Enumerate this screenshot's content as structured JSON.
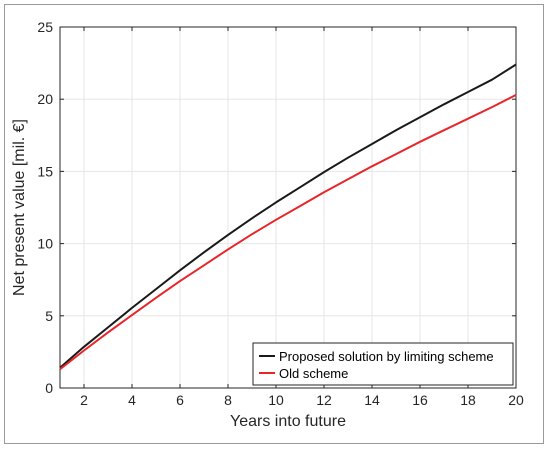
{
  "chart_data": {
    "type": "line",
    "title": "",
    "xlabel": "Years into future",
    "ylabel": "Net present value [mil. €]",
    "xlim": [
      1,
      20
    ],
    "ylim": [
      0,
      25
    ],
    "xticks": [
      2,
      4,
      6,
      8,
      10,
      12,
      14,
      16,
      18,
      20
    ],
    "yticks": [
      0,
      5,
      10,
      15,
      20,
      25
    ],
    "grid": true,
    "legend_position": "bottom-right",
    "series": [
      {
        "name": "Proposed solution by limiting scheme",
        "color": "#1a1a1a",
        "x": [
          1,
          2,
          3,
          4,
          5,
          6,
          7,
          8,
          9,
          10,
          11,
          12,
          13,
          14,
          15,
          16,
          17,
          18,
          19,
          20
        ],
        "y": [
          1.4,
          2.85,
          4.2,
          5.55,
          6.85,
          8.15,
          9.4,
          10.6,
          11.75,
          12.85,
          13.9,
          14.95,
          15.95,
          16.9,
          17.85,
          18.75,
          19.65,
          20.5,
          21.35,
          22.4
        ]
      },
      {
        "name": "Old scheme",
        "color": "#e8262a",
        "x": [
          1,
          2,
          3,
          4,
          5,
          6,
          7,
          8,
          9,
          10,
          11,
          12,
          13,
          14,
          15,
          16,
          17,
          18,
          19,
          20
        ],
        "y": [
          1.3,
          2.6,
          3.85,
          5.05,
          6.25,
          7.4,
          8.5,
          9.6,
          10.65,
          11.65,
          12.6,
          13.55,
          14.45,
          15.35,
          16.2,
          17.05,
          17.85,
          18.65,
          19.45,
          20.3
        ]
      }
    ]
  }
}
